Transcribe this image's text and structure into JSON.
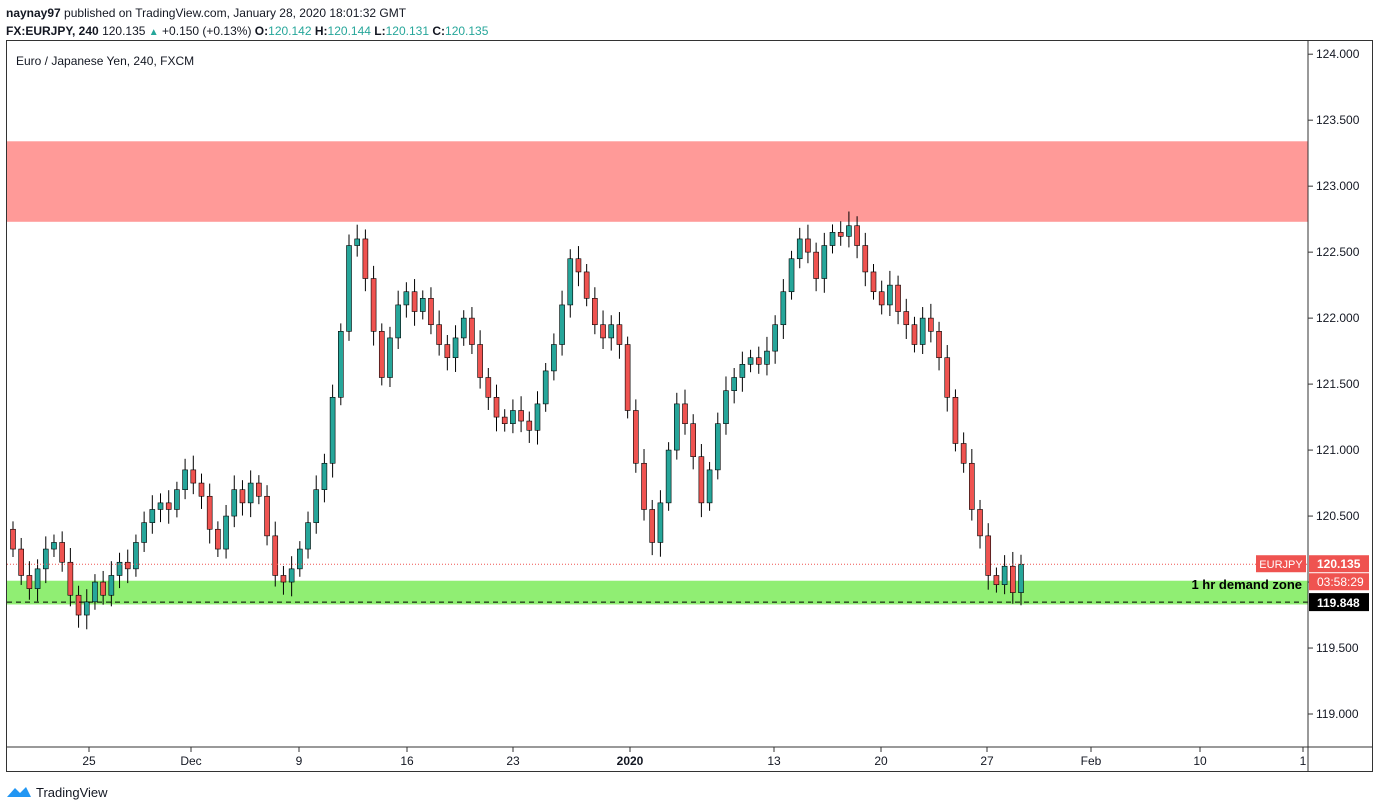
{
  "publish_line": {
    "author": "naynay97",
    "text": "published on TradingView.com, January 28, 2020 18:01:32 GMT"
  },
  "quote_line": {
    "symbol": "FX:EURJPY, 240",
    "price": "120.135",
    "change": "+0.150 (+0.13%)",
    "o_label": "O:",
    "o": "120.142",
    "h_label": "H:",
    "h": "120.144",
    "l_label": "L:",
    "l": "120.131",
    "c_label": "C:",
    "c": "120.135"
  },
  "footer": {
    "brand": "TradingView"
  },
  "colors": {
    "up": "#26a69a",
    "down": "#ef5350",
    "wick": "#000000",
    "supply_zone": "#ff9a98",
    "demand_zone": "#90ee73",
    "price_line": "#ef5350",
    "accent_green": "#26a69a"
  },
  "chart_data": {
    "type": "candlestick",
    "title": "Euro / Japanese Yen, 240, FXCM",
    "ylim": [
      118.75,
      124.1
    ],
    "y_ticks": [
      "124.000",
      "123.500",
      "123.000",
      "122.500",
      "122.000",
      "121.500",
      "121.000",
      "120.500",
      "120.000",
      "119.500",
      "119.000"
    ],
    "x_ticks": [
      "25",
      "Dec",
      "9",
      "16",
      "23",
      "2020",
      "13",
      "20",
      "27",
      "Feb",
      "10",
      "1"
    ],
    "zones": [
      {
        "name": "supply",
        "low": 122.73,
        "high": 123.34
      },
      {
        "name": "demand",
        "low": 119.83,
        "high": 120.01,
        "label": "1 hr demand zone"
      }
    ],
    "dashed_level": 119.848,
    "current_price": 120.135,
    "price_badge": {
      "symbol": "EURJPY",
      "price": "120.135",
      "countdown": "03:58:29"
    },
    "level_badge": "119.848",
    "points": [
      [
        120.4,
        120.25
      ],
      [
        120.25,
        120.05
      ],
      [
        120.05,
        119.95
      ],
      [
        119.95,
        120.1
      ],
      [
        120.1,
        120.25
      ],
      [
        120.25,
        120.3
      ],
      [
        120.3,
        120.15
      ],
      [
        120.15,
        119.9
      ],
      [
        119.9,
        119.75
      ],
      [
        119.75,
        119.85
      ],
      [
        119.85,
        120.0
      ],
      [
        120.0,
        119.9
      ],
      [
        119.9,
        120.05
      ],
      [
        120.05,
        120.15
      ],
      [
        120.15,
        120.1
      ],
      [
        120.1,
        120.3
      ],
      [
        120.3,
        120.45
      ],
      [
        120.45,
        120.55
      ],
      [
        120.55,
        120.6
      ],
      [
        120.6,
        120.55
      ],
      [
        120.55,
        120.7
      ],
      [
        120.7,
        120.85
      ],
      [
        120.85,
        120.75
      ],
      [
        120.75,
        120.65
      ],
      [
        120.65,
        120.4
      ],
      [
        120.4,
        120.25
      ],
      [
        120.25,
        120.5
      ],
      [
        120.5,
        120.7
      ],
      [
        120.7,
        120.6
      ],
      [
        120.6,
        120.75
      ],
      [
        120.75,
        120.65
      ],
      [
        120.65,
        120.35
      ],
      [
        120.35,
        120.05
      ],
      [
        120.05,
        120.0
      ],
      [
        120.0,
        120.1
      ],
      [
        120.1,
        120.25
      ],
      [
        120.25,
        120.45
      ],
      [
        120.45,
        120.7
      ],
      [
        120.7,
        120.9
      ],
      [
        120.9,
        121.4
      ],
      [
        121.4,
        121.9
      ],
      [
        121.9,
        122.55
      ],
      [
        122.55,
        122.6
      ],
      [
        122.6,
        122.3
      ],
      [
        122.3,
        121.9
      ],
      [
        121.9,
        121.55
      ],
      [
        121.55,
        121.85
      ],
      [
        121.85,
        122.1
      ],
      [
        122.1,
        122.2
      ],
      [
        122.2,
        122.05
      ],
      [
        122.05,
        122.15
      ],
      [
        122.15,
        121.95
      ],
      [
        121.95,
        121.8
      ],
      [
        121.8,
        121.7
      ],
      [
        121.7,
        121.85
      ],
      [
        121.85,
        122.0
      ],
      [
        122.0,
        121.8
      ],
      [
        121.8,
        121.55
      ],
      [
        121.55,
        121.4
      ],
      [
        121.4,
        121.25
      ],
      [
        121.25,
        121.2
      ],
      [
        121.2,
        121.3
      ],
      [
        121.3,
        121.22
      ],
      [
        121.22,
        121.15
      ],
      [
        121.15,
        121.35
      ],
      [
        121.35,
        121.6
      ],
      [
        121.6,
        121.8
      ],
      [
        121.8,
        122.1
      ],
      [
        122.1,
        122.45
      ],
      [
        122.45,
        122.35
      ],
      [
        122.35,
        122.15
      ],
      [
        122.15,
        121.95
      ],
      [
        121.95,
        121.85
      ],
      [
        121.85,
        121.95
      ],
      [
        121.95,
        121.8
      ],
      [
        121.8,
        121.3
      ],
      [
        121.3,
        120.9
      ],
      [
        120.9,
        120.55
      ],
      [
        120.55,
        120.3
      ],
      [
        120.3,
        120.6
      ],
      [
        120.6,
        121.0
      ],
      [
        121.0,
        121.35
      ],
      [
        121.35,
        121.2
      ],
      [
        121.2,
        120.95
      ],
      [
        120.95,
        120.6
      ],
      [
        120.6,
        120.85
      ],
      [
        120.85,
        121.2
      ],
      [
        121.2,
        121.45
      ],
      [
        121.45,
        121.55
      ],
      [
        121.55,
        121.65
      ],
      [
        121.65,
        121.7
      ],
      [
        121.7,
        121.65
      ],
      [
        121.65,
        121.75
      ],
      [
        121.75,
        121.95
      ],
      [
        121.95,
        122.2
      ],
      [
        122.2,
        122.45
      ],
      [
        122.45,
        122.6
      ],
      [
        122.6,
        122.5
      ],
      [
        122.5,
        122.3
      ],
      [
        122.3,
        122.55
      ],
      [
        122.55,
        122.65
      ],
      [
        122.65,
        122.62
      ],
      [
        122.62,
        122.7
      ],
      [
        122.7,
        122.55
      ],
      [
        122.55,
        122.35
      ],
      [
        122.35,
        122.2
      ],
      [
        122.2,
        122.1
      ],
      [
        122.1,
        122.25
      ],
      [
        122.25,
        122.05
      ],
      [
        122.05,
        121.95
      ],
      [
        121.95,
        121.8
      ],
      [
        121.8,
        122.0
      ],
      [
        122.0,
        121.9
      ],
      [
        121.9,
        121.7
      ],
      [
        121.7,
        121.4
      ],
      [
        121.4,
        121.05
      ],
      [
        121.05,
        120.9
      ],
      [
        120.9,
        120.55
      ],
      [
        120.55,
        120.35
      ],
      [
        120.35,
        120.05
      ],
      [
        120.05,
        119.98
      ],
      [
        119.98,
        120.12
      ],
      [
        120.12,
        119.92
      ],
      [
        119.92,
        120.135
      ]
    ]
  }
}
